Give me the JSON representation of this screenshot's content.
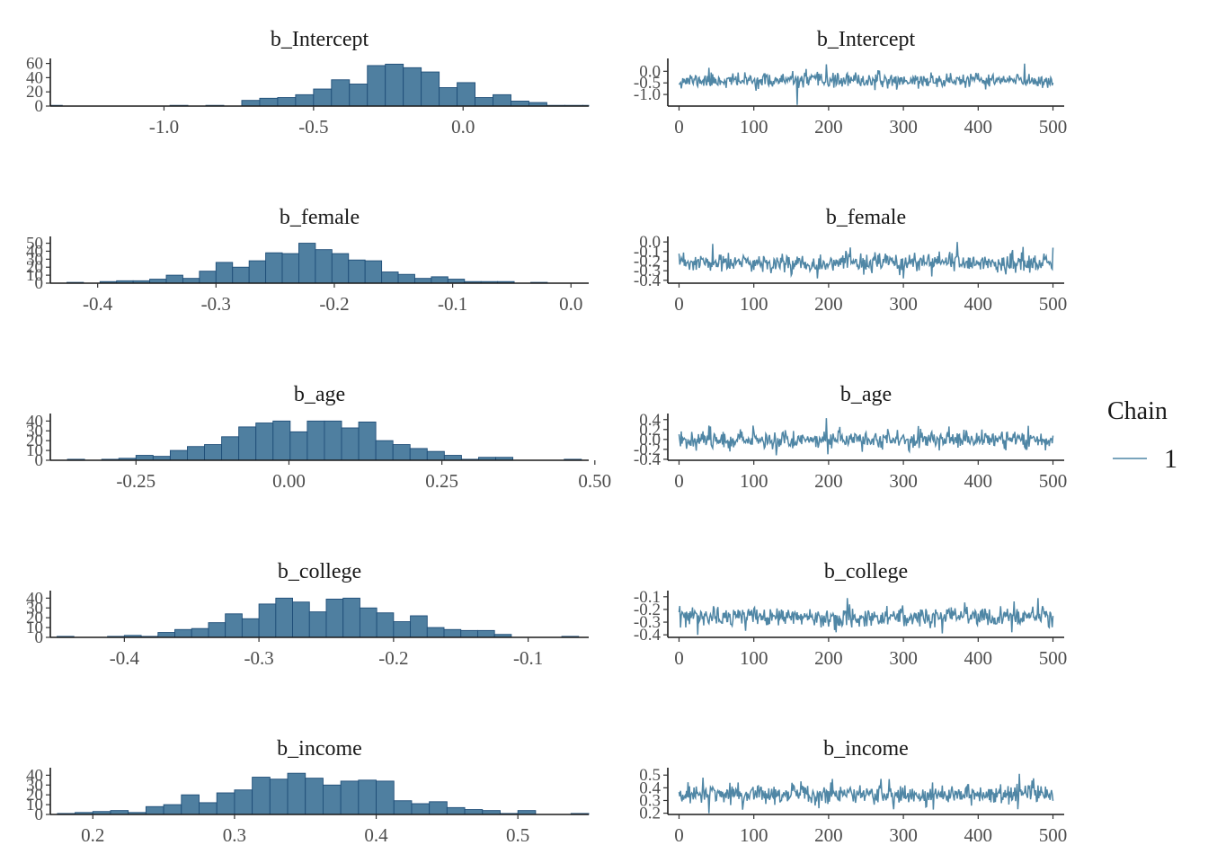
{
  "legend": {
    "title": "Chain",
    "entries": [
      {
        "label": "1",
        "color": "#4f86a5"
      }
    ]
  },
  "colors": {
    "hist_fill": "#4f7fa0",
    "hist_outline": "#1f4e78",
    "trace": "#4f86a5"
  },
  "chart_data": [
    {
      "type": "bar",
      "title": "b_Intercept",
      "xlim": [
        -1.38,
        0.42
      ],
      "ylim": [
        0,
        62
      ],
      "xticks": [
        -1.0,
        -0.5,
        0.0
      ],
      "xtick_labels": [
        "-1.0",
        "-0.5",
        "0.0"
      ],
      "yticks": [
        0,
        20,
        40,
        60
      ],
      "ytick_labels": [
        "0",
        "20",
        "40",
        "60"
      ],
      "bin_start": -1.4,
      "bin_width": 0.06,
      "counts": [
        1,
        0,
        0,
        0,
        0,
        0,
        0,
        1,
        0,
        1,
        0,
        8,
        11,
        12,
        16,
        24,
        37,
        31,
        57,
        59,
        54,
        48,
        26,
        33,
        12,
        16,
        7,
        5,
        1,
        1,
        1
      ]
    },
    {
      "type": "line",
      "title": "b_Intercept",
      "xlim": [
        -15,
        515
      ],
      "ylim": [
        -1.5,
        0.4
      ],
      "xticks": [
        0,
        100,
        200,
        300,
        400,
        500
      ],
      "xtick_labels": [
        "0",
        "100",
        "200",
        "300",
        "400",
        "500"
      ],
      "yticks": [
        0.0,
        -0.5,
        -1.0
      ],
      "ytick_labels": [
        "0.0",
        "-0.5",
        "-1.0"
      ],
      "n": 500,
      "center": -0.4,
      "sd": 0.17,
      "seed": 11,
      "extremes": [
        [
          158,
          -1.45
        ],
        [
          197,
          0.3
        ],
        [
          462,
          0.33
        ],
        [
          40,
          0.15
        ],
        [
          170,
          0.1
        ]
      ]
    },
    {
      "type": "bar",
      "title": "b_female",
      "xlim": [
        -0.44,
        0.015
      ],
      "ylim": [
        0,
        54
      ],
      "xticks": [
        -0.4,
        -0.3,
        -0.2,
        -0.1,
        0.0
      ],
      "xtick_labels": [
        "-0.4",
        "-0.3",
        "-0.2",
        "-0.1",
        "0.0"
      ],
      "yticks": [
        0,
        10,
        20,
        30,
        40,
        50
      ],
      "ytick_labels": [
        "0",
        "10",
        "20",
        "30",
        "40",
        "50"
      ],
      "bin_start": -0.44,
      "bin_width": 0.014,
      "counts": [
        0,
        1,
        0,
        2,
        3,
        3,
        5,
        10,
        6,
        15,
        26,
        20,
        28,
        38,
        37,
        50,
        42,
        37,
        29,
        28,
        14,
        11,
        6,
        8,
        5,
        2,
        2,
        2,
        0,
        1,
        0
      ]
    },
    {
      "type": "line",
      "title": "b_female",
      "xlim": [
        -15,
        515
      ],
      "ylim": [
        -0.43,
        0.02
      ],
      "xticks": [
        0,
        100,
        200,
        300,
        400,
        500
      ],
      "xtick_labels": [
        "0",
        "100",
        "200",
        "300",
        "400",
        "500"
      ],
      "yticks": [
        0.0,
        -0.1,
        -0.2,
        -0.3,
        -0.4
      ],
      "ytick_labels": [
        "0.0",
        "-0.1",
        "-0.2",
        "-0.3",
        "-0.4"
      ],
      "n": 500,
      "center": -0.22,
      "sd": 0.055,
      "seed": 23,
      "extremes": [
        [
          45,
          -0.02
        ],
        [
          372,
          0.0
        ],
        [
          338,
          -0.36
        ],
        [
          185,
          -0.38
        ],
        [
          300,
          -0.38
        ],
        [
          500,
          -0.06
        ]
      ]
    },
    {
      "type": "bar",
      "title": "b_age",
      "xlim": [
        -0.39,
        0.49
      ],
      "ylim": [
        0,
        44
      ],
      "xticks": [
        -0.25,
        0.0,
        0.25,
        0.5
      ],
      "xtick_labels": [
        "-0.25",
        "0.00",
        "0.25",
        "0.50"
      ],
      "yticks": [
        0,
        10,
        20,
        30,
        40
      ],
      "ytick_labels": [
        "0",
        "10",
        "20",
        "30",
        "40"
      ],
      "bin_start": -0.39,
      "bin_width": 0.028,
      "counts": [
        0,
        1,
        0,
        1,
        2,
        5,
        4,
        10,
        14,
        16,
        24,
        34,
        38,
        40,
        29,
        40,
        40,
        33,
        39,
        20,
        16,
        12,
        9,
        5,
        1,
        3,
        3,
        0,
        0,
        0,
        1,
        0
      ]
    },
    {
      "type": "line",
      "title": "b_age",
      "xlim": [
        -15,
        515
      ],
      "ylim": [
        -0.42,
        0.45
      ],
      "xticks": [
        0,
        100,
        200,
        300,
        400,
        500
      ],
      "xtick_labels": [
        "0",
        "100",
        "200",
        "300",
        "400",
        "500"
      ],
      "yticks": [
        0.4,
        0.2,
        0.0,
        -0.2,
        -0.4
      ],
      "ytick_labels": [
        "0.4",
        "0.2",
        "0.0",
        "-0.2",
        "-0.4"
      ],
      "n": 500,
      "center": 0.0,
      "sd": 0.1,
      "seed": 37,
      "extremes": [
        [
          197,
          0.43
        ],
        [
          199,
          -0.3
        ],
        [
          130,
          -0.32
        ],
        [
          40,
          0.28
        ],
        [
          320,
          0.27
        ]
      ]
    },
    {
      "type": "bar",
      "title": "b_college",
      "xlim": [
        -0.455,
        -0.055
      ],
      "ylim": [
        0,
        44
      ],
      "xticks": [
        -0.4,
        -0.3,
        -0.2,
        -0.1
      ],
      "xtick_labels": [
        "-0.4",
        "-0.3",
        "-0.2",
        "-0.1"
      ],
      "yticks": [
        0,
        10,
        20,
        30,
        40
      ],
      "ytick_labels": [
        "0",
        "10",
        "20",
        "30",
        "40"
      ],
      "bin_start": -0.45,
      "bin_width": 0.0125,
      "counts": [
        1,
        0,
        0,
        1,
        2,
        1,
        5,
        8,
        9,
        15,
        24,
        19,
        34,
        40,
        36,
        26,
        39,
        40,
        30,
        25,
        16,
        22,
        10,
        8,
        7,
        7,
        3,
        0,
        0,
        0,
        1,
        0
      ]
    },
    {
      "type": "line",
      "title": "b_college",
      "xlim": [
        -15,
        515
      ],
      "ylim": [
        -0.42,
        -0.08
      ],
      "xticks": [
        0,
        100,
        200,
        300,
        400,
        500
      ],
      "xtick_labels": [
        "0",
        "100",
        "200",
        "300",
        "400",
        "500"
      ],
      "yticks": [
        -0.1,
        -0.2,
        -0.3,
        -0.4
      ],
      "ytick_labels": [
        "-0.1",
        "-0.2",
        "-0.3",
        "-0.4"
      ],
      "n": 500,
      "center": -0.26,
      "sd": 0.042,
      "seed": 53,
      "extremes": [
        [
          25,
          -0.4
        ],
        [
          225,
          -0.11
        ],
        [
          480,
          -0.11
        ],
        [
          210,
          -0.38
        ],
        [
          445,
          -0.38
        ]
      ]
    },
    {
      "type": "bar",
      "title": "b_income",
      "xlim": [
        0.17,
        0.55
      ],
      "ylim": [
        0,
        44
      ],
      "xticks": [
        0.2,
        0.3,
        0.4,
        0.5
      ],
      "xtick_labels": [
        "0.2",
        "0.3",
        "0.4",
        "0.5"
      ],
      "yticks": [
        0,
        10,
        20,
        30,
        40
      ],
      "ytick_labels": [
        "0",
        "10",
        "20",
        "30",
        "40"
      ],
      "bin_start": 0.175,
      "bin_width": 0.0125,
      "counts": [
        1,
        2,
        3,
        4,
        2,
        8,
        10,
        20,
        12,
        22,
        25,
        38,
        36,
        42,
        37,
        30,
        34,
        35,
        34,
        14,
        11,
        13,
        7,
        5,
        4,
        1,
        4,
        0,
        0,
        1,
        0
      ]
    },
    {
      "type": "line",
      "title": "b_income",
      "xlim": [
        -15,
        515
      ],
      "ylim": [
        0.19,
        0.53
      ],
      "xticks": [
        0,
        100,
        200,
        300,
        400,
        500
      ],
      "xtick_labels": [
        "0",
        "100",
        "200",
        "300",
        "400",
        "500"
      ],
      "yticks": [
        0.5,
        0.4,
        0.3,
        0.2
      ],
      "ytick_labels": [
        "0.5",
        "0.4",
        "0.3",
        "0.2"
      ],
      "n": 500,
      "center": 0.35,
      "sd": 0.045,
      "seed": 71,
      "extremes": [
        [
          40,
          0.2
        ],
        [
          455,
          0.51
        ],
        [
          32,
          0.48
        ],
        [
          205,
          0.47
        ],
        [
          270,
          0.47
        ]
      ]
    }
  ]
}
